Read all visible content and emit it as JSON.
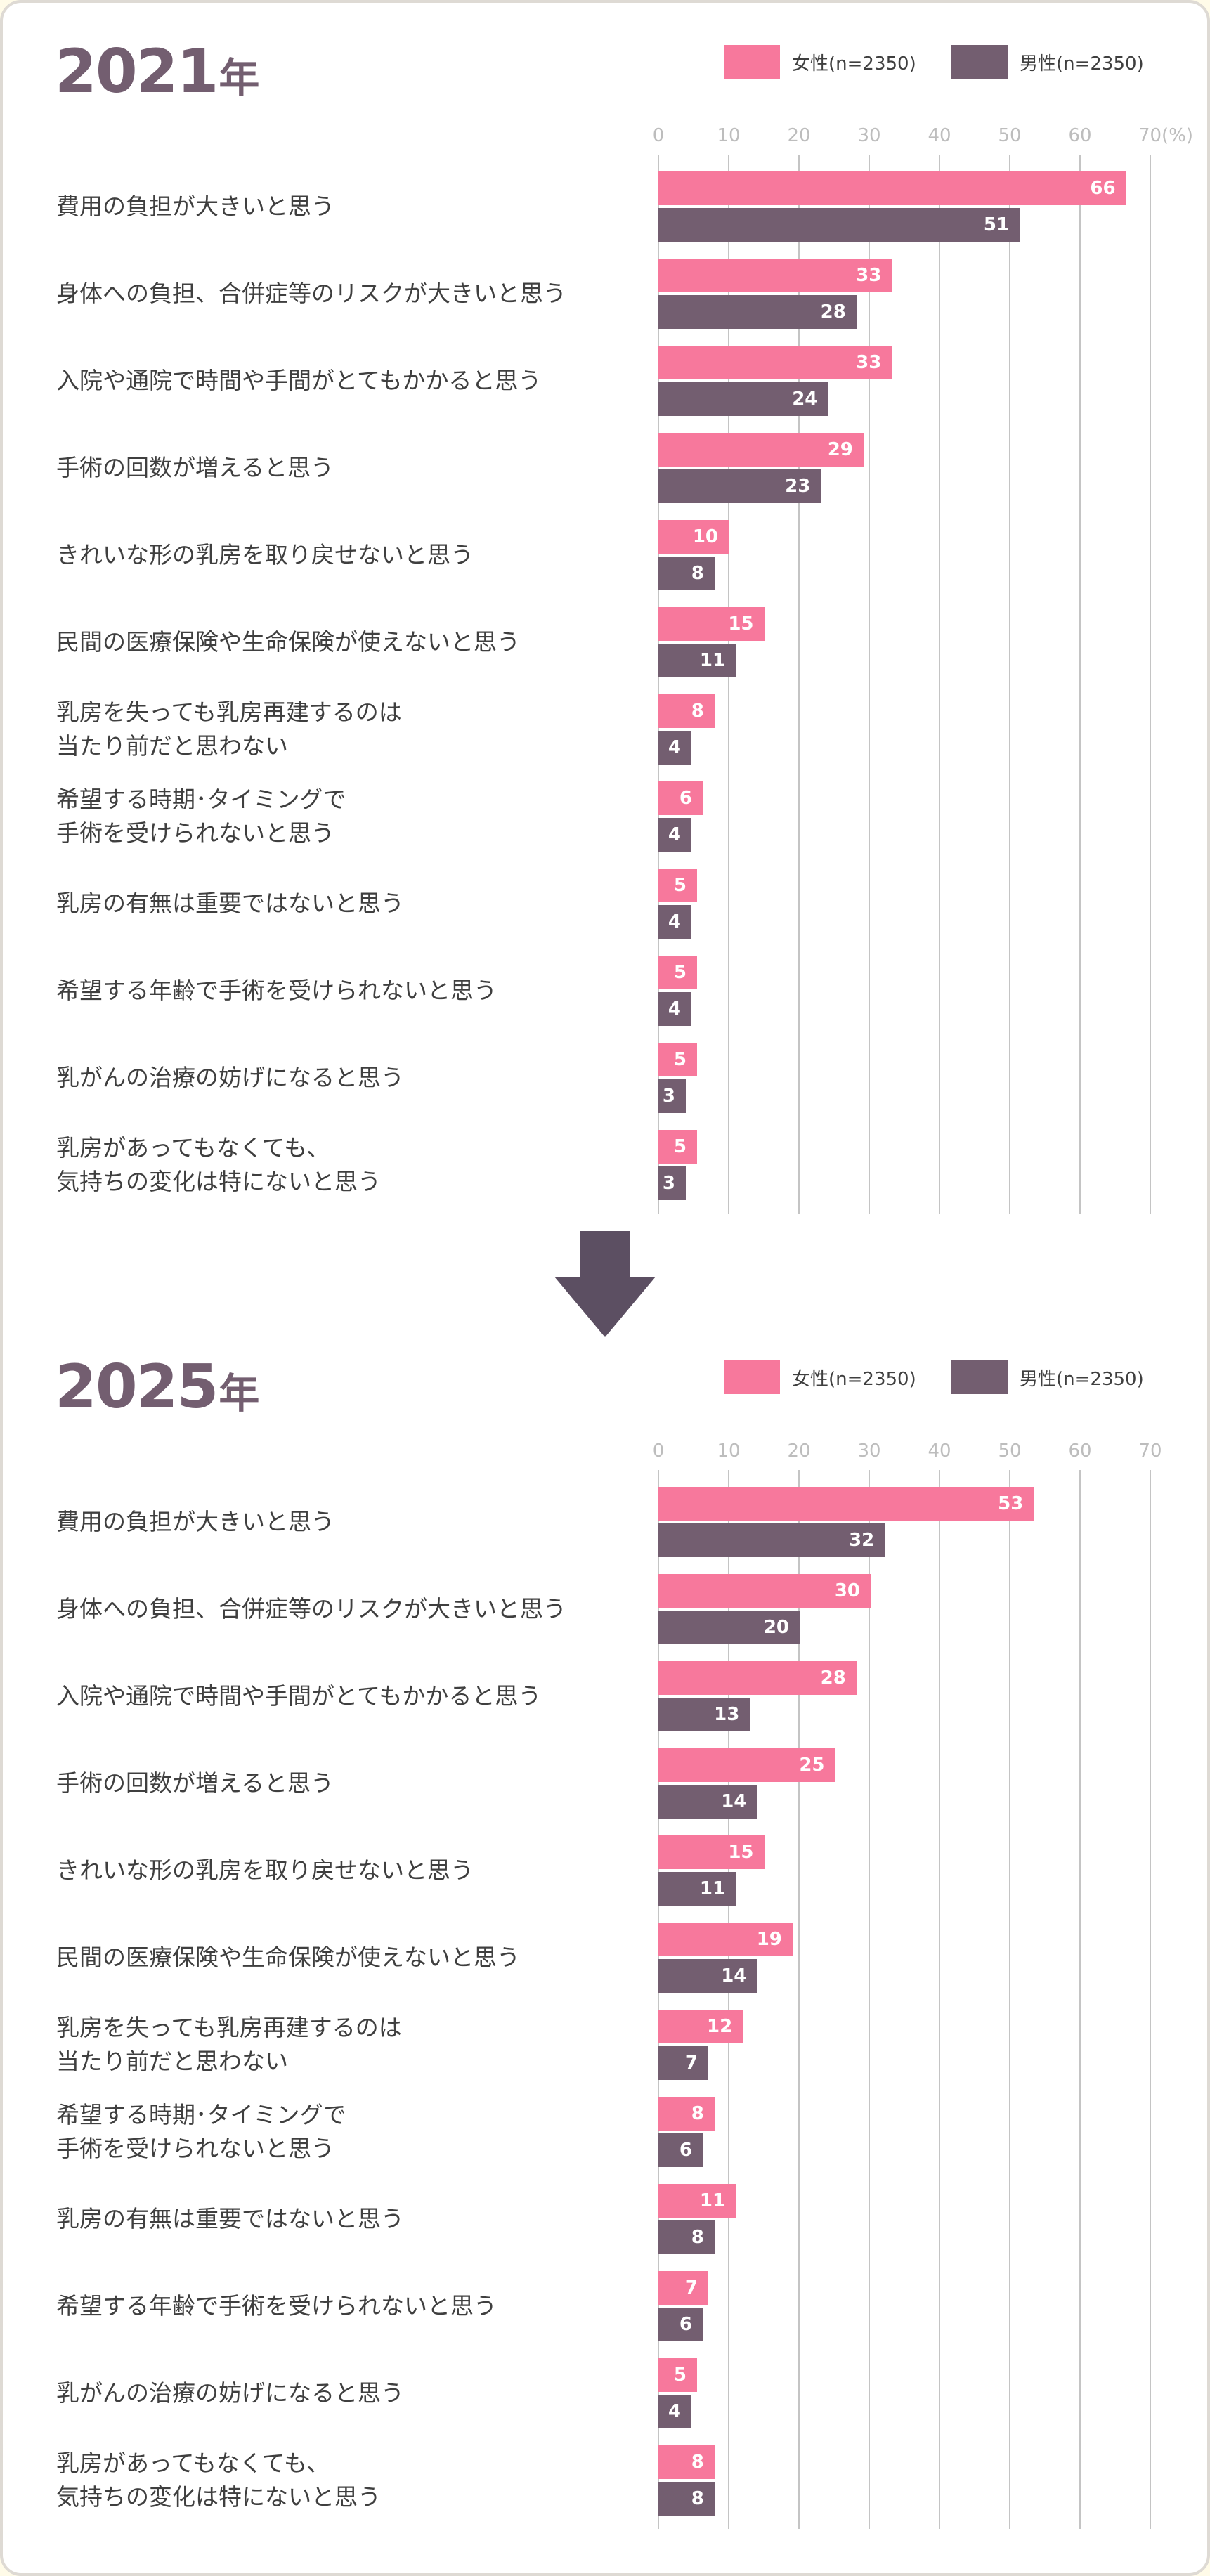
{
  "colors": {
    "female": "#f7789c",
    "male": "#735e70",
    "title": "#735e70",
    "arrow": "#5c4f62",
    "grid": "#c4c4c4",
    "axis_text": "#bdbdbd"
  },
  "legend": {
    "female": "女性(n=2350)",
    "male": "男性(n=2350)"
  },
  "categories": [
    "費用の負担が大きいと思う",
    "身体への負担、合併症等のリスクが大きいと思う",
    "入院や通院で時間や手間がとてもかかると思う",
    "手術の回数が増えると思う",
    "きれいな形の乳房を取り戻せないと思う",
    "民間の医療保険や生命保険が使えないと思う",
    "乳房を失っても乳房再建するのは\n当たり前だと思わない",
    "希望する時期･タイミングで\n手術を受けられないと思う",
    "乳房の有無は重要ではないと思う",
    "希望する年齢で手術を受けられないと思う",
    "乳がんの治療の妨げになると思う",
    "乳房があってもなくても、\n気持ちの変化は特にないと思う"
  ],
  "sections": [
    {
      "year": "2021",
      "unit": "年",
      "axis_ticks": [
        "0",
        "10",
        "20",
        "30",
        "40",
        "50",
        "60",
        "70(%)"
      ]
    },
    {
      "year": "2025",
      "unit": "年",
      "axis_ticks": [
        "0",
        "10",
        "20",
        "30",
        "40",
        "50",
        "60",
        "70"
      ]
    }
  ],
  "chart_data": [
    {
      "type": "bar",
      "orientation": "horizontal",
      "title": "2021年",
      "xlabel": "(%)",
      "xlim": [
        0,
        70
      ],
      "xticks": [
        0,
        10,
        20,
        30,
        40,
        50,
        60,
        70
      ],
      "grid": true,
      "legend_position": "top-right",
      "categories": [
        "費用の負担が大きいと思う",
        "身体への負担、合併症等のリスクが大きいと思う",
        "入院や通院で時間や手間がとてもかかると思う",
        "手術の回数が増えると思う",
        "きれいな形の乳房を取り戻せないと思う",
        "民間の医療保険や生命保険が使えないと思う",
        "乳房を失っても乳房再建するのは当たり前だと思わない",
        "希望する時期･タイミングで手術を受けられないと思う",
        "乳房の有無は重要ではないと思う",
        "希望する年齢で手術を受けられないと思う",
        "乳がんの治療の妨げになると思う",
        "乳房があってもなくても、気持ちの変化は特にないと思う"
      ],
      "series": [
        {
          "name": "女性(n=2350)",
          "values": [
            66,
            33,
            33,
            29,
            10,
            15,
            8,
            6,
            5,
            5,
            5,
            5
          ]
        },
        {
          "name": "男性(n=2350)",
          "values": [
            51,
            28,
            24,
            23,
            8,
            11,
            4,
            4,
            4,
            4,
            3,
            3
          ]
        }
      ]
    },
    {
      "type": "bar",
      "orientation": "horizontal",
      "title": "2025年",
      "xlabel": "",
      "xlim": [
        0,
        70
      ],
      "xticks": [
        0,
        10,
        20,
        30,
        40,
        50,
        60,
        70
      ],
      "grid": true,
      "legend_position": "top-right",
      "categories": [
        "費用の負担が大きいと思う",
        "身体への負担、合併症等のリスクが大きいと思う",
        "入院や通院で時間や手間がとてもかかると思う",
        "手術の回数が増えると思う",
        "きれいな形の乳房を取り戻せないと思う",
        "民間の医療保険や生命保険が使えないと思う",
        "乳房を失っても乳房再建するのは当たり前だと思わない",
        "希望する時期･タイミングで手術を受けられないと思う",
        "乳房の有無は重要ではないと思う",
        "希望する年齢で手術を受けられないと思う",
        "乳がんの治療の妨げになると思う",
        "乳房があってもなくても、気持ちの変化は特にないと思う"
      ],
      "series": [
        {
          "name": "女性(n=2350)",
          "values": [
            53,
            30,
            28,
            25,
            15,
            19,
            12,
            8,
            11,
            7,
            5,
            8
          ]
        },
        {
          "name": "男性(n=2350)",
          "values": [
            32,
            20,
            13,
            14,
            11,
            14,
            7,
            6,
            8,
            6,
            4,
            8
          ]
        }
      ]
    }
  ],
  "arrow": {
    "icon": "down-arrow-icon"
  }
}
